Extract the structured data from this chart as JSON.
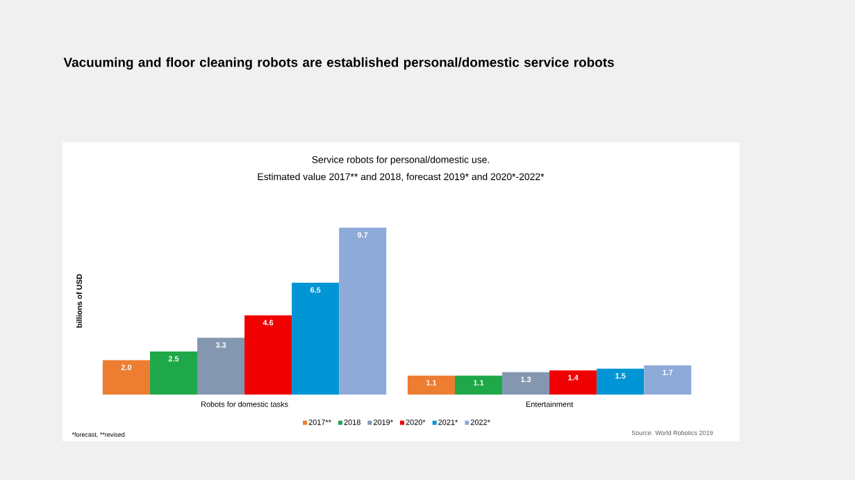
{
  "chart_data": {
    "type": "bar",
    "title": "Vacuuming and floor cleaning robots are established personal/domestic service robots",
    "subtitle": "Service robots for personal/domestic use.",
    "ylabel": "billions of USD",
    "categories": [
      "Robots for domestic tasks",
      "Entertainment"
    ],
    "series": [
      {
        "name": "2017**",
        "color": "#ed7d31",
        "values": [
          2.0,
          1.1
        ],
        "value_labels": [
          "2.0",
          "1.1"
        ]
      },
      {
        "name": "2018",
        "color": "#1fa84a",
        "values": [
          2.5,
          1.1
        ],
        "value_labels": [
          "2.5",
          "1.1"
        ]
      },
      {
        "name": "2019*",
        "color": "#8497b0",
        "values": [
          3.3,
          1.3
        ],
        "value_labels": [
          "3.3",
          "1.3"
        ]
      },
      {
        "name": "2020*",
        "color": "#f00000",
        "values": [
          4.6,
          1.4
        ],
        "value_labels": [
          "4.6",
          "1.4"
        ]
      },
      {
        "name": "2021*",
        "color": "#0095d5",
        "values": [
          6.5,
          1.5
        ],
        "value_labels": [
          "6.5",
          "1.5"
        ]
      },
      {
        "name": "2022*",
        "color": "#8eaad8",
        "values": [
          9.7,
          1.7
        ],
        "value_labels": [
          "9.7",
          "1.7"
        ]
      }
    ],
    "legend": "bottom",
    "grid": false,
    "annotations": [
      "Estimated value 2017** and 2018, forecast 2019* and 2020*-2022*",
      "*forecast, **revised",
      "Source: World Robotics 2019"
    ]
  }
}
